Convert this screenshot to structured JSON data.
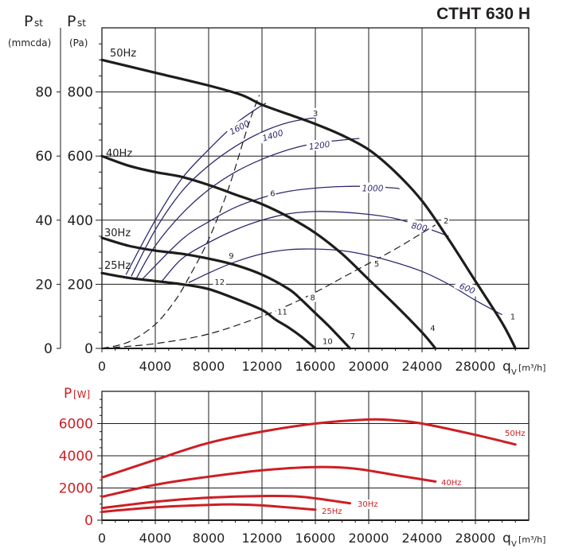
{
  "title": "CTHT 630 H",
  "chart_data": [
    {
      "type": "line",
      "name": "pressure-curves",
      "ylabel_left": {
        "symbol": "P",
        "sub": "st",
        "unit": "(mmcda)"
      },
      "ylabel_right": {
        "symbol": "P",
        "sub": "st",
        "unit": "(Pa)"
      },
      "xlabel": {
        "symbol": "q",
        "sub": "V",
        "unit": "[m³/h]"
      },
      "xlim": [
        0,
        32000
      ],
      "ylim": [
        0,
        1000
      ],
      "x_ticks": [
        0,
        4000,
        8000,
        12000,
        16000,
        20000,
        24000,
        28000
      ],
      "x_tick_labels": [
        "0",
        "4000",
        "8000",
        "12000",
        "16000",
        "20000",
        "24000",
        "28000"
      ],
      "y_ticks_pa": [
        0,
        200,
        400,
        600,
        800
      ],
      "y_tick_labels_pa": [
        "0",
        "200",
        "400",
        "600",
        "800"
      ],
      "y_ticks_mmcda": [
        0,
        20,
        40,
        60,
        80
      ],
      "y_tick_labels_mmcda": [
        "0",
        "20",
        "40",
        "60",
        "80"
      ],
      "grid": true,
      "series": [
        {
          "name": "50Hz",
          "label": "50Hz",
          "x": [
            0,
            4000,
            8000,
            10500,
            12000,
            14000,
            16000,
            18000,
            20000,
            22000,
            24000,
            26000,
            28000,
            30000,
            31000
          ],
          "y": [
            900,
            860,
            820,
            790,
            760,
            730,
            700,
            665,
            620,
            550,
            460,
            340,
            210,
            80,
            0
          ]
        },
        {
          "name": "40Hz",
          "label": "40Hz",
          "x": [
            0,
            2000,
            4000,
            6000,
            8000,
            10000,
            12000,
            14000,
            16000,
            18000,
            20000,
            22000,
            24000,
            25000
          ],
          "y": [
            600,
            570,
            550,
            535,
            510,
            480,
            450,
            410,
            360,
            295,
            215,
            135,
            50,
            0
          ]
        },
        {
          "name": "30Hz",
          "label": "30Hz",
          "x": [
            0,
            2000,
            4000,
            6000,
            8000,
            10000,
            12000,
            14000,
            15000,
            16000,
            17000,
            18600
          ],
          "y": [
            345,
            320,
            305,
            295,
            280,
            260,
            230,
            185,
            150,
            110,
            70,
            0
          ]
        },
        {
          "name": "25Hz",
          "label": "25Hz",
          "x": [
            0,
            2000,
            4000,
            6000,
            8000,
            10000,
            12000,
            13000,
            14000,
            15000,
            16000
          ],
          "y": [
            235,
            220,
            210,
            200,
            185,
            155,
            120,
            90,
            65,
            35,
            0
          ]
        }
      ],
      "rpm_curves": [
        {
          "label": "1600",
          "x": [
            1800,
            4000,
            6000,
            8000,
            10000,
            11500,
            12300
          ],
          "y": [
            230,
            400,
            530,
            620,
            700,
            745,
            765
          ]
        },
        {
          "label": "1400",
          "x": [
            2200,
            4000,
            6000,
            8000,
            10000,
            12000,
            14000,
            16000
          ],
          "y": [
            225,
            370,
            490,
            570,
            630,
            675,
            705,
            720
          ]
        },
        {
          "label": "1200",
          "x": [
            2600,
            4000,
            6000,
            8000,
            10000,
            12000,
            14000,
            16000,
            18000,
            19300
          ],
          "y": [
            220,
            320,
            420,
            495,
            550,
            590,
            620,
            640,
            650,
            655
          ]
        },
        {
          "label": "1000",
          "x": [
            3000,
            6000,
            8000,
            10000,
            12000,
            14000,
            16000,
            18000,
            20000,
            22000,
            22300
          ],
          "y": [
            215,
            340,
            395,
            440,
            470,
            490,
            500,
            505,
            505,
            500,
            497
          ]
        },
        {
          "label": "800",
          "x": [
            4500,
            6000,
            8000,
            10000,
            12000,
            14000,
            16000,
            18000,
            20000,
            22000,
            24000,
            26000
          ],
          "y": [
            210,
            280,
            330,
            370,
            400,
            420,
            427,
            425,
            418,
            405,
            380,
            350
          ]
        },
        {
          "label": "600",
          "x": [
            6500,
            8000,
            10000,
            12000,
            14000,
            16000,
            18000,
            20000,
            22000,
            24000,
            26000,
            28000,
            30000
          ],
          "y": [
            205,
            235,
            270,
            295,
            308,
            310,
            305,
            290,
            268,
            240,
            200,
            150,
            105
          ]
        }
      ],
      "system_curves": [
        {
          "name": "steep",
          "x": [
            0,
            2000,
            4000,
            5500,
            6500,
            8000,
            9500,
            11000,
            11800
          ],
          "y": [
            0,
            20,
            75,
            150,
            220,
            340,
            500,
            700,
            790
          ]
        },
        {
          "name": "shallow",
          "x": [
            0,
            4000,
            8000,
            12000,
            14000,
            16000,
            18000,
            20000,
            22000,
            24000,
            25000
          ],
          "y": [
            0,
            15,
            45,
            100,
            135,
            175,
            220,
            265,
            310,
            360,
            385
          ]
        }
      ],
      "point_labels": [
        {
          "label": "1",
          "x": 30800,
          "y": 95
        },
        {
          "label": "2",
          "x": 25800,
          "y": 395
        },
        {
          "label": "3",
          "x": 16000,
          "y": 730
        },
        {
          "label": "4",
          "x": 24800,
          "y": 60
        },
        {
          "label": "5",
          "x": 20600,
          "y": 260
        },
        {
          "label": "6",
          "x": 12800,
          "y": 480
        },
        {
          "label": "7",
          "x": 18800,
          "y": 35
        },
        {
          "label": "8",
          "x": 15800,
          "y": 155
        },
        {
          "label": "9",
          "x": 9700,
          "y": 285
        },
        {
          "label": "10",
          "x": 16800,
          "y": 18
        },
        {
          "label": "11",
          "x": 13400,
          "y": 110
        },
        {
          "label": "12",
          "x": 8700,
          "y": 203
        }
      ]
    },
    {
      "type": "line",
      "name": "power-curves",
      "ylabel": {
        "symbol": "P",
        "unit": "[W]"
      },
      "xlabel": {
        "symbol": "q",
        "sub": "V",
        "unit": "[m³/h]"
      },
      "xlim": [
        0,
        32000
      ],
      "ylim": [
        0,
        8000
      ],
      "x_ticks": [
        0,
        4000,
        8000,
        12000,
        16000,
        20000,
        24000,
        28000
      ],
      "x_tick_labels": [
        "0",
        "4000",
        "8000",
        "12000",
        "16000",
        "20000",
        "24000",
        "28000"
      ],
      "y_ticks": [
        0,
        2000,
        4000,
        6000
      ],
      "y_tick_labels": [
        "0",
        "2000",
        "4000",
        "6000"
      ],
      "grid": true,
      "series": [
        {
          "name": "50Hz",
          "label": "50Hz",
          "x": [
            0,
            4000,
            8000,
            12000,
            16000,
            20000,
            22000,
            24000,
            28000,
            31000
          ],
          "y": [
            2650,
            3750,
            4800,
            5500,
            6000,
            6250,
            6200,
            6000,
            5300,
            4700
          ]
        },
        {
          "name": "40Hz",
          "label": "40Hz",
          "x": [
            0,
            4000,
            8000,
            12000,
            16000,
            19000,
            22000,
            25000
          ],
          "y": [
            1450,
            2200,
            2700,
            3100,
            3300,
            3200,
            2800,
            2400
          ]
        },
        {
          "name": "30Hz",
          "label": "30Hz",
          "x": [
            0,
            4000,
            8000,
            12000,
            15000,
            18600
          ],
          "y": [
            750,
            1150,
            1400,
            1500,
            1450,
            1050
          ]
        },
        {
          "name": "25Hz",
          "label": "25Hz",
          "x": [
            0,
            4000,
            8000,
            10000,
            12000,
            16000
          ],
          "y": [
            520,
            800,
            950,
            980,
            920,
            650
          ]
        }
      ],
      "color": "#cc1f24"
    }
  ],
  "colors": {
    "pressure": "#1d1d1b",
    "rpm": "#2e2a6e",
    "power": "#cc1f24",
    "grid": "#1d1d1b"
  }
}
